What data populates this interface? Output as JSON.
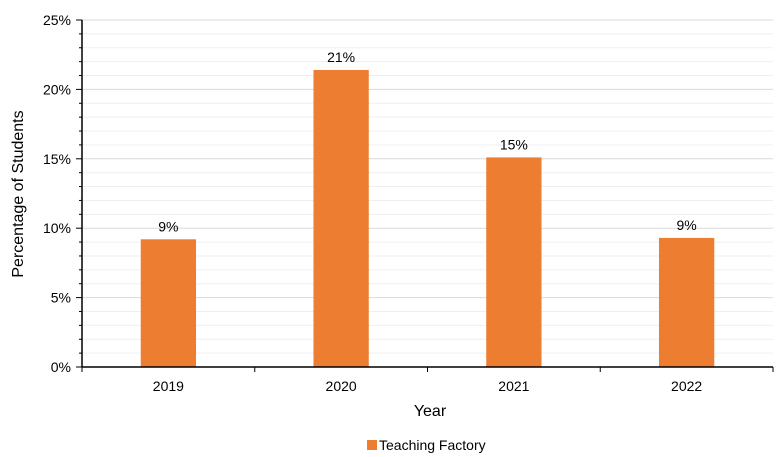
{
  "chart_data": {
    "type": "bar",
    "categories": [
      "2019",
      "2020",
      "2021",
      "2022"
    ],
    "series": [
      {
        "name": "Teaching Factory",
        "values": [
          9.2,
          21.4,
          15.1,
          9.3
        ],
        "data_labels": [
          "9%",
          "21%",
          "15%",
          "9%"
        ],
        "color": "#ED7D31"
      }
    ],
    "xlabel": "Year",
    "ylabel": "Percentage of Students",
    "ylim": [
      0,
      25
    ],
    "yticks": [
      0,
      5,
      10,
      15,
      20,
      25
    ],
    "ytick_labels": [
      "0%",
      "5%",
      "10%",
      "15%",
      "20%",
      "25%"
    ],
    "y_minor_step": 1,
    "grid": true,
    "legend": "bottom-center"
  }
}
